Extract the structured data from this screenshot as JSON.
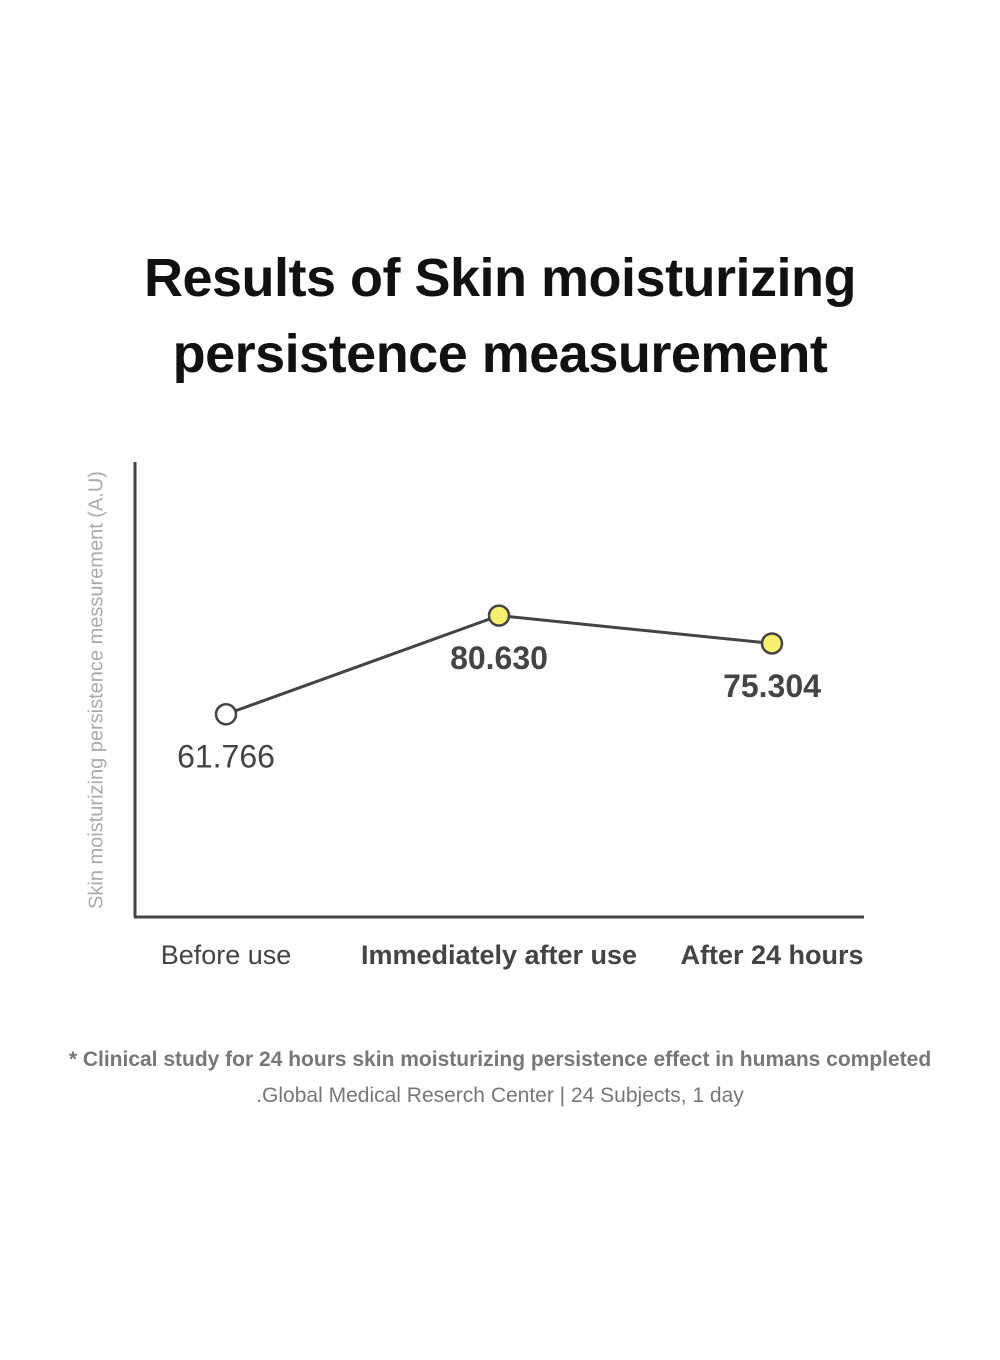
{
  "chart_data": {
    "type": "line",
    "title": "Results of Skin moisturizing persistence measurement",
    "y_label": "Skin moisturizing persistence messurement (A.U)",
    "categories": [
      "Before use",
      "Immediately after use",
      "After 24 hours"
    ],
    "series": [
      {
        "name": null,
        "color": "#444444",
        "values": [
          61.766,
          80.63,
          75.304
        ],
        "value_labels": [
          "61.766",
          "80.630",
          "75.304"
        ],
        "marker_colors": [
          "#ffffff",
          "#f7ef6f",
          "#f7ef6f"
        ]
      }
    ],
    "ylim": [
      23,
      110
    ],
    "notes": [
      "* Clinical study for 24 hours skin moisturizing persistence effect in humans completed",
      ".Global Medical Reserch Center | 24 Subjects, 1 day"
    ]
  }
}
